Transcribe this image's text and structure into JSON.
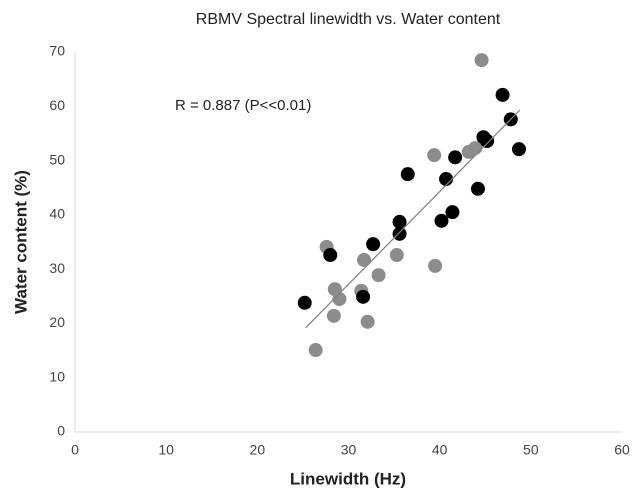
{
  "chart_data": {
    "type": "scatter",
    "title": "RBMV Spectral linewidth vs. Water content",
    "x_label": "Linewidth (Hz)",
    "y_label": "Water content (%)",
    "annotation": "R = 0.887 (P<<0.01)",
    "xlim": [
      0,
      60
    ],
    "xticks": [
      0,
      10,
      20,
      30,
      40,
      50,
      60
    ],
    "ylim": [
      0,
      70
    ],
    "yticks": [
      0,
      10,
      20,
      30,
      40,
      50,
      60,
      70
    ],
    "grid": false,
    "series": [
      {
        "color": "#8c8c8c",
        "x": [
          26.4,
          27.6,
          28.5,
          28.4,
          29.0,
          31.7,
          31.4,
          32.1,
          33.3,
          35.3,
          39.4,
          39.5,
          43.2,
          43.9,
          44.6
        ],
        "values": [
          15.1,
          34.1,
          26.3,
          21.4,
          24.5,
          31.7,
          26.0,
          20.3,
          28.9,
          32.6,
          51.0,
          30.6,
          51.6,
          52.3,
          68.5
        ]
      },
      {
        "color": "#000000",
        "x": [
          25.2,
          28.0,
          32.7,
          31.6,
          35.6,
          35.6,
          36.5,
          40.2,
          40.7,
          41.7,
          41.4,
          44.2,
          44.8,
          45.2,
          46.9,
          47.8,
          48.7
        ],
        "values": [
          23.8,
          32.6,
          34.6,
          24.9,
          38.7,
          36.5,
          47.5,
          38.9,
          46.6,
          50.6,
          40.5,
          44.8,
          54.3,
          53.6,
          62.1,
          57.6,
          52.1
        ]
      }
    ],
    "trendline": {
      "color": "#808080",
      "x": [
        25.3,
        48.8
      ],
      "values": [
        19.2,
        59.3
      ]
    }
  }
}
